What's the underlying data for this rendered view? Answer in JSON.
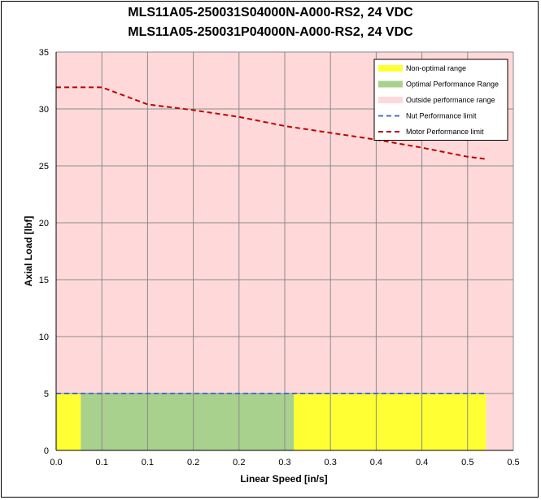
{
  "chart_data": {
    "type": "area",
    "title_lines": [
      "MLS11A05-250031S04000N-A000-RS2, 24 VDC",
      "MLS11A05-250031P04000N-A000-RS2, 24 VDC"
    ],
    "xlabel": "Linear Speed [in/s]",
    "ylabel": "Axial Load [lbf]",
    "xlim": [
      0,
      0.5
    ],
    "ylim": [
      0,
      35
    ],
    "x_tick_labels": [
      "0.0",
      "0.1",
      "0.1",
      "0.2",
      "0.2",
      "0.3",
      "0.3",
      "0.4",
      "0.4",
      "0.5",
      "0.5"
    ],
    "y_ticks": [
      0,
      5,
      10,
      15,
      20,
      25,
      30,
      35
    ],
    "grid": true,
    "legend_position": "top-right",
    "regions": [
      {
        "name": "Outside performance range",
        "color": "#ffd9d9",
        "x": [
          0,
          0.5
        ],
        "y": [
          0,
          35
        ]
      },
      {
        "name": "Non-optimal range",
        "color": "#ffff33",
        "x": [
          0,
          0.027
        ],
        "y": [
          0,
          5
        ]
      },
      {
        "name": "Optimal Performance Range",
        "color": "#a9d18e",
        "x": [
          0.027,
          0.26
        ],
        "y": [
          0,
          5
        ]
      },
      {
        "name": "Non-optimal range",
        "color": "#ffff33",
        "x": [
          0.26,
          0.47
        ],
        "y": [
          0,
          5
        ]
      }
    ],
    "series": [
      {
        "name": "Nut Performance limit",
        "color": "#4472c4",
        "style": "dashed",
        "x": [
          0,
          0.47
        ],
        "y": [
          5,
          5
        ]
      },
      {
        "name": "Motor Performance limit",
        "color": "#c00000",
        "style": "dashed",
        "x": [
          0,
          0.025,
          0.05,
          0.1,
          0.15,
          0.2,
          0.25,
          0.3,
          0.35,
          0.4,
          0.45,
          0.47
        ],
        "y": [
          31.9,
          31.9,
          31.9,
          30.4,
          29.9,
          29.3,
          28.5,
          27.9,
          27.3,
          26.6,
          25.8,
          25.6
        ]
      }
    ],
    "legend": [
      {
        "label": "Non-optimal range",
        "kind": "swatch",
        "color": "#ffff33"
      },
      {
        "label": "Optimal Performance Range",
        "kind": "swatch",
        "color": "#a9d18e"
      },
      {
        "label": "Outside performance range",
        "kind": "swatch",
        "color": "#ffd9d9"
      },
      {
        "label": "Nut Performance limit",
        "kind": "line",
        "color": "#4472c4"
      },
      {
        "label": "Motor Performance limit",
        "kind": "line",
        "color": "#c00000"
      }
    ]
  }
}
